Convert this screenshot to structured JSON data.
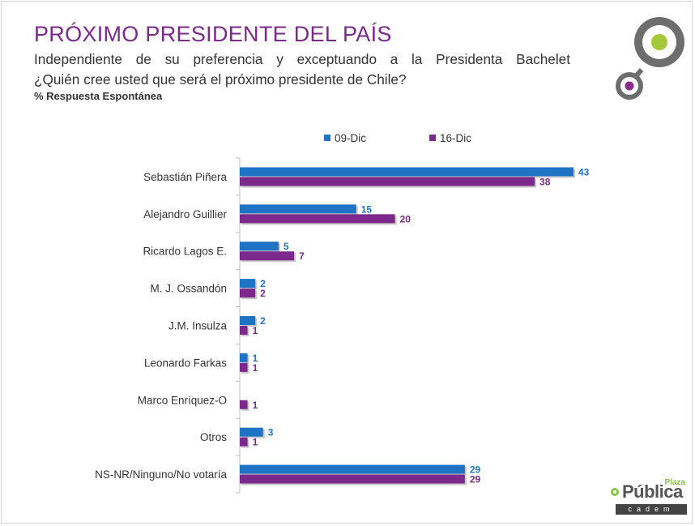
{
  "slide": {
    "title": "PRÓXIMO PRESIDENTE DEL PAÍS",
    "subtitle_line1": "Independiente de su preferencia y exceptuando a la Presidenta Bachelet",
    "subtitle_line2": "¿Quién cree usted que será el próximo presidente de Chile?",
    "note": "% Respuesta Espontánea"
  },
  "brand": {
    "plaza": "Plaza",
    "publica": "Pública",
    "cadem": "cadem"
  },
  "colors": {
    "title": "#7b2a8c",
    "series_1": "#1f73c4",
    "series_2": "#7b2a8c",
    "logo_gray": "#6d6d6d",
    "logo_green": "#a3c93a",
    "logo_purple": "#8e2c8e"
  },
  "chart_data": {
    "type": "bar",
    "orientation": "horizontal",
    "categories": [
      "Sebastián Piñera",
      "Alejandro Guillier",
      "Ricardo Lagos E.",
      "M. J. Ossandón",
      "J.M. Insulza",
      "Leonardo Farkas",
      "Marco Enríquez-O",
      "Otros",
      "NS-NR/Ninguno/No votaría"
    ],
    "series": [
      {
        "name": "09-Dic",
        "values": [
          43,
          15,
          5,
          2,
          2,
          1,
          null,
          3,
          29
        ]
      },
      {
        "name": "16-Dic",
        "values": [
          38,
          20,
          7,
          2,
          1,
          1,
          1,
          1,
          29
        ]
      }
    ],
    "xlim": [
      0,
      43
    ],
    "legend_position": "top",
    "grid": false
  }
}
